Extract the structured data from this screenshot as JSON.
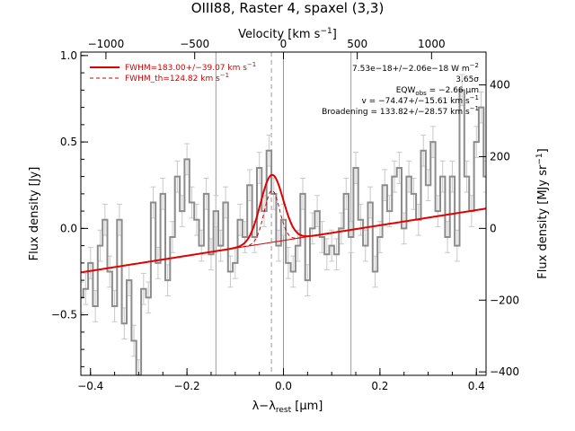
{
  "chart_data": {
    "type": "line",
    "title": "OIII88, Raster 4, spaxel (3,3)",
    "xlabel": "λ−λ",
    "xlabel_sub": "rest",
    "xlabel_unit": " [μm]",
    "ylabel": "Flux density [Jy]",
    "top_axis_label": "Velocity [km s",
    "top_axis_label_sup": "−1",
    "top_axis_label_end": "]",
    "right_axis_label": "Flux density [MJy sr",
    "right_axis_label_sup": "−1",
    "right_axis_label_end": "]",
    "xlim": [
      -0.42,
      0.42
    ],
    "ylim": [
      -0.85,
      1.02
    ],
    "x_ticks": [
      -0.4,
      -0.2,
      0.0,
      0.2,
      0.4
    ],
    "x_tick_labels": [
      "−0.4",
      "−0.2",
      "0.0",
      "0.2",
      "0.4"
    ],
    "y_ticks": [
      -0.5,
      0.0,
      0.5,
      1.0
    ],
    "y_tick_labels": [
      "−0.5",
      "0.0",
      "0.5",
      "1.0"
    ],
    "top_ticks_x": [
      -0.368,
      -0.184,
      0.0,
      0.153,
      0.307
    ],
    "top_tick_labels": [
      "−1000",
      "−500",
      "0",
      "500",
      "1000"
    ],
    "right_ticks_y": [
      -0.83,
      -0.415,
      0.0,
      0.415,
      0.83
    ],
    "right_tick_labels": [
      "−400",
      "−200",
      "0",
      "200",
      "400"
    ],
    "vertical_lines": [
      -0.14,
      0.0,
      0.14
    ],
    "dashed_line_x": -0.025,
    "legend": [
      {
        "label": "FWHM=183.00+/−39.07 km s",
        "sup": "−1",
        "style": "solid"
      },
      {
        "label": "FWHM_th=124.82 km s",
        "sup": "−1",
        "style": "dashed"
      }
    ],
    "annotations": [
      {
        "text": "7.53e−18+/−2.06e−18 W m",
        "sup": "−2"
      },
      {
        "text": "3.65σ",
        "sup": ""
      },
      {
        "text": "EQW",
        "sub": "obs",
        "end": " = −2.66 μm"
      },
      {
        "text": "v = −74.47+/−15.61 km s",
        "sup": "−1"
      },
      {
        "text": "Broadening = 133.82+/−28.57 km s",
        "sup": "−1"
      }
    ],
    "model": {
      "continuum_slope": 0.44,
      "continuum_intercept": -0.07,
      "gauss_center": -0.024,
      "gauss_sigma": 0.0235,
      "gauss_amp": 0.39,
      "gauss_th_sigma": 0.016,
      "gauss_th_amp": 0.3
    },
    "series": [
      {
        "x": [
          -0.42,
          -0.41,
          -0.4,
          -0.39,
          -0.38,
          -0.37,
          -0.36,
          -0.35,
          -0.34,
          -0.33,
          -0.32,
          -0.31,
          -0.3,
          -0.29,
          -0.28,
          -0.27,
          -0.26,
          -0.25,
          -0.24,
          -0.23,
          -0.22,
          -0.21,
          -0.2,
          -0.19,
          -0.18,
          -0.17,
          -0.16,
          -0.15,
          -0.14,
          -0.13,
          -0.12,
          -0.11,
          -0.1,
          -0.09,
          -0.08,
          -0.07,
          -0.06,
          -0.05,
          -0.04,
          -0.03,
          -0.02,
          -0.01,
          0.0,
          0.01,
          0.02,
          0.03,
          0.04,
          0.05,
          0.06,
          0.07,
          0.08,
          0.09,
          0.1,
          0.11,
          0.12,
          0.13,
          0.14,
          0.15,
          0.16,
          0.17,
          0.18,
          0.19,
          0.2,
          0.21,
          0.22,
          0.23,
          0.24,
          0.25,
          0.26,
          0.27,
          0.28,
          0.29,
          0.3,
          0.31,
          0.32,
          0.33,
          0.34,
          0.35,
          0.36,
          0.37,
          0.38,
          0.39,
          0.4,
          0.41,
          0.42
        ],
        "y": [
          -0.4,
          -0.35,
          -0.2,
          -0.45,
          -0.1,
          0.05,
          -0.25,
          -0.45,
          0.05,
          -0.55,
          -0.3,
          -0.65,
          -0.85,
          -0.35,
          -0.4,
          0.15,
          -0.2,
          0.2,
          -0.3,
          -0.05,
          0.3,
          0.1,
          0.4,
          0.15,
          0.05,
          -0.1,
          0.2,
          -0.15,
          0.1,
          -0.1,
          0.15,
          -0.25,
          -0.2,
          0.05,
          -0.05,
          0.25,
          -0.05,
          0.35,
          0.1,
          0.45,
          0.2,
          -0.1,
          0.05,
          -0.2,
          -0.25,
          -0.1,
          0.2,
          -0.3,
          0.0,
          0.1,
          -0.05,
          -0.15,
          -0.1,
          -0.15,
          0.0,
          0.2,
          -0.05,
          0.35,
          0.05,
          -0.1,
          0.15,
          -0.25,
          -0.05,
          0.25,
          0.1,
          0.3,
          0.35,
          0.0,
          0.3,
          0.2,
          0.05,
          0.45,
          0.25,
          0.5,
          0.1,
          0.3,
          -0.05,
          0.3,
          -0.1,
          0.8,
          0.3,
          0.1,
          0.5,
          0.7,
          0.3
        ],
        "err": 0.09
      }
    ]
  }
}
